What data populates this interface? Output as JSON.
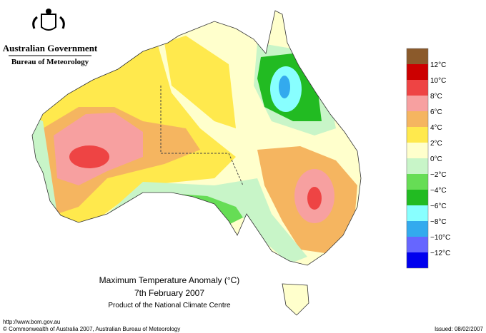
{
  "header": {
    "government": "Australian Government",
    "agency": "Bureau of Meteorology"
  },
  "legend": {
    "colors": [
      "#8b5a2b",
      "#cc0000",
      "#ee4444",
      "#f7a0a0",
      "#f5b560",
      "#ffe94d",
      "#ffffcc",
      "#c8f5c8",
      "#66dd55",
      "#22bb22",
      "#88ffff",
      "#33aaee",
      "#6666ff",
      "#0000ee"
    ],
    "labels": [
      "12°C",
      "10°C",
      "8°C",
      "6°C",
      "4°C",
      "2°C",
      "0°C",
      "−2°C",
      "−4°C",
      "−6°C",
      "−8°C",
      "−10°C",
      "−12°C"
    ]
  },
  "map": {
    "title": "Maximum Temperature Anomaly (°C)",
    "date": "7th February 2007",
    "product": "Product of the National Climate Centre"
  },
  "footer": {
    "url": "http://www.bom.gov.au",
    "copyright": "© Commonwealth of Australia 2007, Australian Bureau of Meteorology",
    "issued": "Issued: 08/02/2007"
  }
}
